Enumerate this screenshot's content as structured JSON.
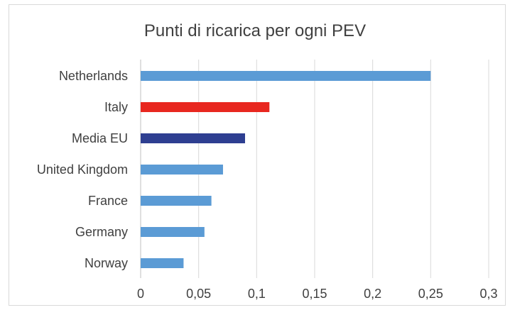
{
  "chart_data": {
    "type": "bar",
    "orientation": "horizontal",
    "title": "Punti di ricarica per ogni PEV",
    "xlabel": "",
    "ylabel": "",
    "categories": [
      "Netherlands",
      "Italy",
      "Media EU",
      "United Kingdom",
      "France",
      "Germany",
      "Norway"
    ],
    "values": [
      0.25,
      0.111,
      0.09,
      0.071,
      0.061,
      0.055,
      0.037
    ],
    "bar_colors": [
      "#5b9bd5",
      "#e8271f",
      "#2e3f91",
      "#5b9bd5",
      "#5b9bd5",
      "#5b9bd5",
      "#5b9bd5"
    ],
    "xlim": [
      0,
      0.3
    ],
    "x_ticks": [
      0,
      0.05,
      0.1,
      0.15,
      0.2,
      0.25,
      0.3
    ],
    "x_tick_labels": [
      "0",
      "0,05",
      "0,1",
      "0,15",
      "0,2",
      "0,25",
      "0,3"
    ],
    "grid": "vertical",
    "legend": "none"
  }
}
